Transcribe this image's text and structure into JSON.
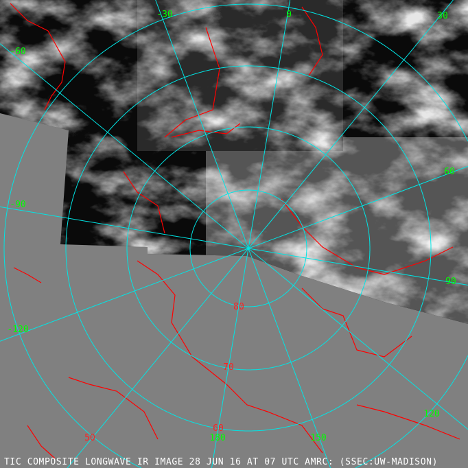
{
  "image": {
    "caption": "TIC COMPOSITE LONGWAVE IR IMAGE 28 JUN 16 AT 07 UTC AMRC: (SSEC:UW-MADISON)",
    "projection": "polar stereographic, north pole centered",
    "colors": {
      "background_no_data": "#808080",
      "graticule": "#00e5e5",
      "coastlines": "#ff0000",
      "longitude_labels": "#00ff00",
      "latitude_labels": "#ff2020",
      "caption": "#ffffff"
    }
  },
  "graticule": {
    "latitude_labels": [
      "80",
      "70",
      "60",
      "50"
    ],
    "longitude_labels": [
      "-30",
      "0",
      "30",
      "-60",
      "60",
      "-90",
      "90",
      "-120",
      "120",
      "180",
      "150"
    ]
  }
}
